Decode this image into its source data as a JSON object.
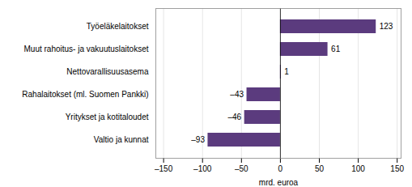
{
  "chart_data": {
    "type": "bar",
    "orientation": "horizontal",
    "categories": [
      "Valtio ja kunnat",
      "Yritykset ja kotitaloudet",
      "Rahalaitokset (ml. Suomen Pankki)",
      "Nettovarallisuusasema",
      "Muut rahoitus- ja vakuutuslaitokset",
      "Työeläkelaitokset"
    ],
    "values": [
      -93,
      -46,
      -43,
      1,
      61,
      123
    ],
    "value_labels": [
      "–93",
      "–46",
      "–43",
      "1",
      "61",
      "123"
    ],
    "data_labels": true,
    "color": "#5b3b7e",
    "xlabel": "mrd. euroa",
    "xlim": [
      -160,
      155
    ],
    "xticks": [
      {
        "value": -150,
        "label": "–150"
      },
      {
        "value": -100,
        "label": "–100"
      },
      {
        "value": -50,
        "label": "–50"
      },
      0,
      50,
      100,
      150
    ],
    "grid": true
  }
}
